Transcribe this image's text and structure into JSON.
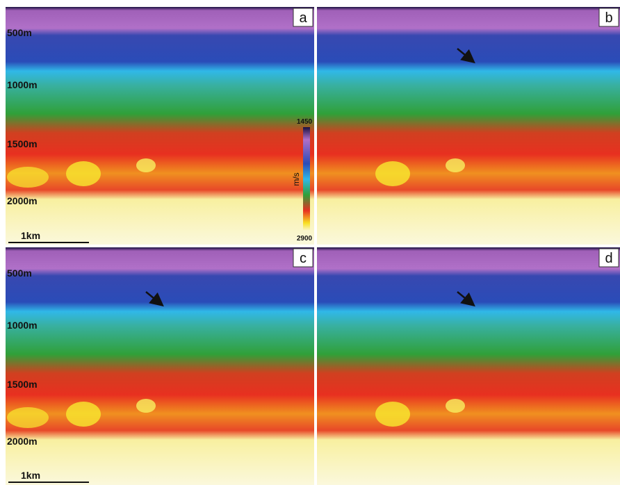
{
  "panels": [
    {
      "label": "a",
      "depth_labels": [
        "500m",
        "1000m",
        "1500m",
        "2000m"
      ],
      "scale_bar": "1km"
    },
    {
      "label": "b"
    },
    {
      "label": "c",
      "depth_labels": [
        "500m",
        "1000m",
        "1500m",
        "2000m"
      ],
      "scale_bar": "1km"
    },
    {
      "label": "d"
    }
  ],
  "colorbar": {
    "top_label": "1450",
    "bottom_label": "2900",
    "unit": "m/s"
  }
}
